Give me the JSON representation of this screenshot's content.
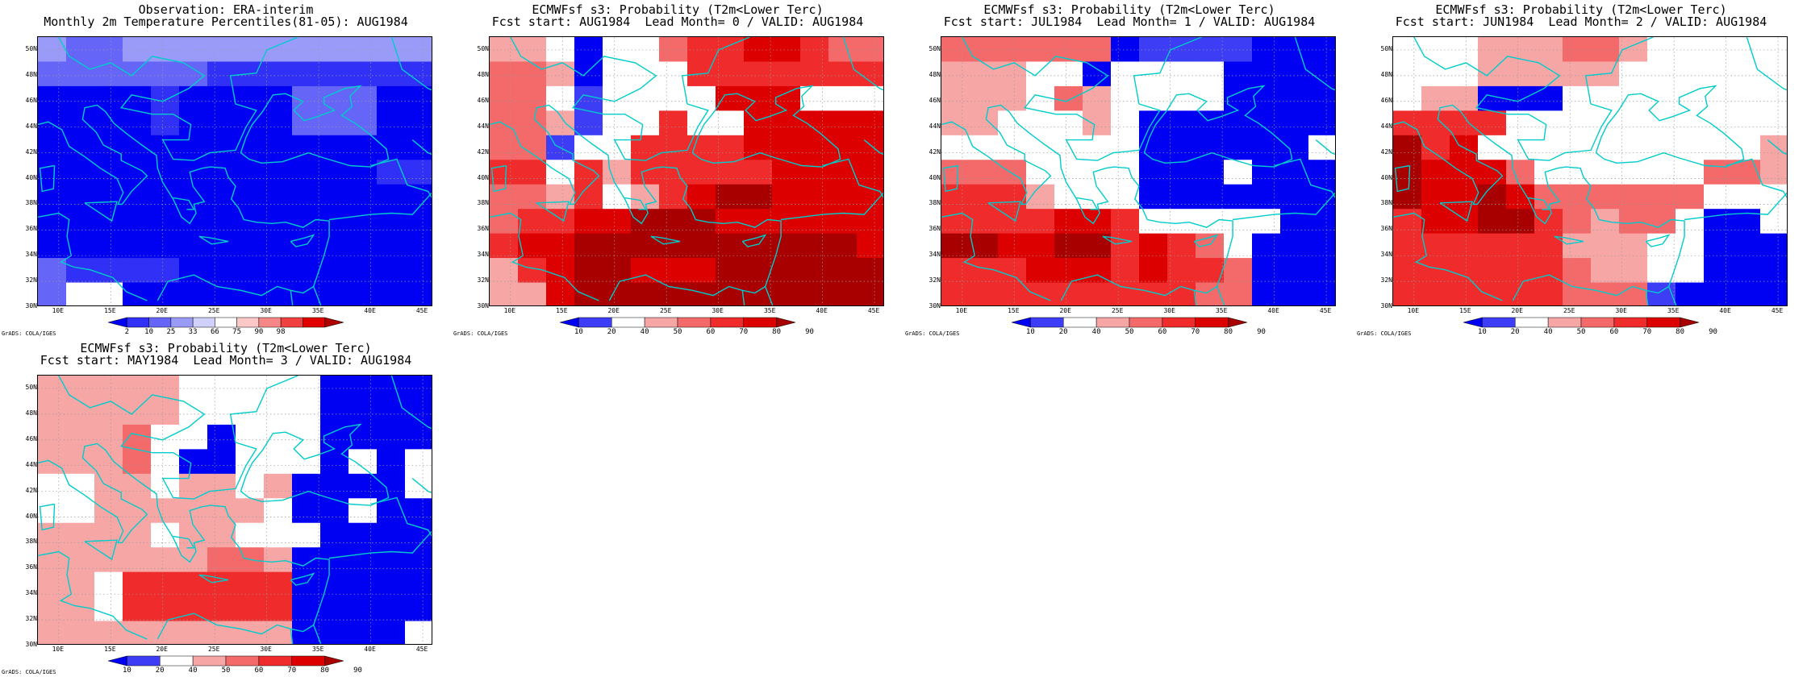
{
  "lat_labels": [
    "50N",
    "48N",
    "46N",
    "44N",
    "42N",
    "40N",
    "38N",
    "36N",
    "34N",
    "32N",
    "30N"
  ],
  "lon_labels": [
    "10E",
    "15E",
    "20E",
    "25E",
    "30E",
    "35E",
    "40E",
    "45E"
  ],
  "credit": "GrADS: COLA/IGES",
  "colors": {
    "coast": "#00cccc",
    "grid": "#9a9a9a",
    "obs_palette": [
      "#0000f2",
      "#3030f6",
      "#6565f8",
      "#9a9af8",
      "#d0d0fb",
      "#ffffff",
      "#fbc8c8",
      "#f78787",
      "#f04040",
      "#e00000",
      "#b00000"
    ],
    "prob_palette": [
      "#0000f2",
      "#3d3df5",
      "#ffffff",
      "#f7a6a6",
      "#f46a6a",
      "#ef2b2b",
      "#dc0000",
      "#a80000"
    ]
  },
  "panels": [
    {
      "id": "obs",
      "title_line1": "Observation: ERA-interim",
      "title_line2": "Monthly 2m Temperature Percentiles(81-05): AUG1984",
      "colorbar_labels": [
        "2",
        "10",
        "25",
        "33",
        "66",
        "75",
        "90",
        "98"
      ],
      "palette": "obs",
      "grid": [
        "32233333333333",
        "22222211111111",
        "00001000022200",
        "00001000022200",
        "00000000000000",
        "00000000000011",
        "00000000000000",
        "00000000000000",
        "00000000000000",
        "21111000000000",
        "25500000000000"
      ]
    },
    {
      "id": "lead0",
      "title_line1": "ECMWFsf s3: Probability (T2m<Lower Terc)",
      "title_line2": "Fcst start: AUG1984  Lead Month= 0 / VALID: AUG1984",
      "colorbar_labels": [
        "10",
        "20",
        "40",
        "50",
        "60",
        "70",
        "80",
        "90"
      ],
      "palette": "prob",
      "grid": [
        "33202245566544",
        "44302225555555",
        "44212222666222",
        "44312252266666",
        "44122555566666",
        "55253555556666",
        "44352356776666",
        "45566777666666",
        "56677777777776",
        "35677666777777",
        "33677777777777"
      ]
    },
    {
      "id": "lead1",
      "title_line1": "ECMWFsf s3: Probability (T2m<Lower Terc)",
      "title_line2": "Fcst start: JUL1984  Lead Month= 1 / VALID: AUG1984",
      "colorbar_labels": [
        "10",
        "20",
        "40",
        "50",
        "60",
        "70",
        "80",
        "90"
      ],
      "palette": "prob",
      "grid": [
        "44444401111000",
        "33322022220000",
        "33324322220000",
        "33222320000000",
        "22222220000002",
        "44422220002000",
        "55532220000000",
        "55556652222200",
        "77667756542000",
        "55566656554000",
        "55555555544000"
      ]
    },
    {
      "id": "lead2",
      "title_line1": "ECMWFsf s3: Probability (T2m<Lower Terc)",
      "title_line2": "Fcst start: JUN1984  Lead Month= 2 / VALID: AUG1984",
      "colorbar_labels": [
        "10",
        "20",
        "40",
        "50",
        "60",
        "70",
        "80",
        "90"
      ],
      "palette": "prob",
      "grid": [
        "22233344322222",
        "22233333222222",
        "23300022222222",
        "55552222222222",
        "75622222222223",
        "76664222222443",
        "76676444444222",
        "56677543442002",
        "55555533322000",
        "55555543322000",
        "55555544410000"
      ]
    },
    {
      "id": "lead3",
      "title_line1": "ECMWFsf s3: Probability (T2m<Lower Terc)",
      "title_line2": "Fcst start: MAY1984  Lead Month= 3 / VALID: AUG1984",
      "colorbar_labels": [
        "10",
        "20",
        "40",
        "50",
        "60",
        "70",
        "80",
        "90"
      ],
      "palette": "prob",
      "grid": [
        "33333222220000",
        "33333222220000",
        "33342202220000",
        "33342002220202",
        "22332332300002",
        "22333333200200",
        "33332332220000",
        "33333344300000",
        "33255555500000",
        "33255555500000",
        "33333333300002"
      ]
    }
  ]
}
